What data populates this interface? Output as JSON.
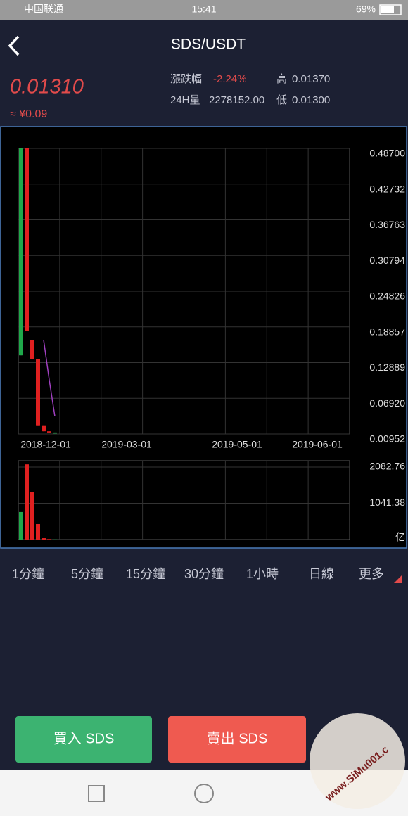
{
  "status_bar": {
    "carrier": "中国联通",
    "time": "15:41",
    "battery": "69%"
  },
  "header": {
    "title": "SDS/USDT"
  },
  "ticker": {
    "price": "0.01310",
    "approx": "≈ ¥0.09",
    "change_label": "漲跌幅",
    "change": "-2.24%",
    "high_label": "高",
    "high": "0.01370",
    "volume_label": "24H量",
    "volume": "2278152.00",
    "low_label": "低",
    "low": "0.01300"
  },
  "chart": {
    "type": "candlestick",
    "open": [
      0.141,
      0.487,
      0.167,
      0.135,
      0.024,
      0.014,
      0.0105
    ],
    "high": [
      0.487,
      0.487,
      0.167,
      0.135,
      0.024,
      0.014,
      0.012
    ],
    "low": [
      0.141,
      0.182,
      0.135,
      0.024,
      0.014,
      0.012,
      0.0105
    ],
    "close": [
      0.487,
      0.182,
      0.135,
      0.024,
      0.014,
      0.012,
      0.012
    ],
    "ma": [
      null,
      null,
      null,
      null,
      0.167,
      0.1,
      0.039
    ],
    "ma_color": "#a040c0",
    "up_color": "#1fa84a",
    "down_color": "#e02020",
    "ylim": [
      0.00952,
      0.487
    ],
    "yticks": [
      {
        "value": 0.487,
        "label": "0.48700"
      },
      0.42732,
      0.36763,
      {
        "value": 0.30794,
        "label": "0.30794"
      },
      0.24826,
      0.18857,
      0.12889,
      {
        "value": 0.0692,
        "label": "0.06920"
      },
      0.00952
    ],
    "xlabels": [
      "2018-12-01",
      "2019-03-01",
      "2019-05-01",
      "2019-06-01"
    ],
    "volume": [
      790,
      2160,
      1355,
      445,
      40,
      15,
      5
    ],
    "volume_ylim": [
      0,
      2082.76
    ],
    "volume_yticks": [
      2082.76,
      1041.38
    ],
    "volume_unit": "亿"
  },
  "tabs": [
    "1分鐘",
    "5分鐘",
    "15分鐘",
    "30分鐘",
    "1小時",
    "日線",
    "更多"
  ],
  "buttons": {
    "buy": "買入 SDS",
    "sell": "賣出 SDS"
  },
  "watermark": "www.SiMu001.c"
}
